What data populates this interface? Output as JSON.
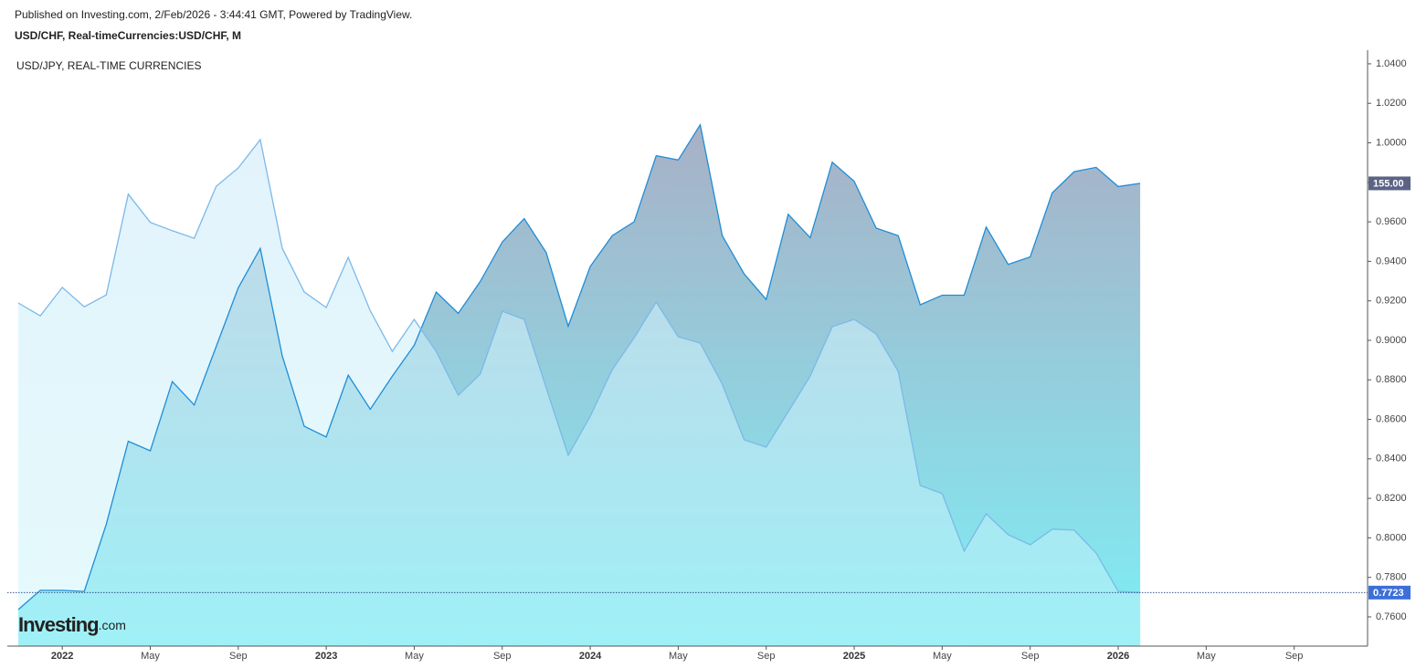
{
  "chart_data": {
    "type": "area",
    "header": "Published on Investing.com, 2/Feb/2026 - 3:44:41 GMT, Powered by TradingView.",
    "title": "USD/CHF, Real-timeCurrencies:USD/CHF, M",
    "overlay_legend": "USD/JPY, REAL-TIME CURRENCIES",
    "watermark": {
      "brand": "Investing",
      "suffix": ".com"
    },
    "categories": [
      null,
      null,
      "2022",
      null,
      null,
      null,
      "May",
      null,
      null,
      null,
      "Sep",
      null,
      null,
      null,
      "2023",
      null,
      null,
      null,
      "May",
      null,
      null,
      null,
      "Sep",
      null,
      null,
      null,
      "2024",
      null,
      null,
      null,
      "May",
      null,
      null,
      null,
      "Sep",
      null,
      null,
      null,
      "2025",
      null,
      null,
      null,
      "May",
      null,
      null,
      null,
      "Sep",
      null,
      null,
      null,
      "2026",
      null,
      null,
      null,
      "May",
      null,
      null,
      null,
      "Sep",
      null,
      null,
      null
    ],
    "ylim": [
      0.7452,
      1.0469
    ],
    "yticks": [
      {
        "value": 0.76,
        "label": "0.7600"
      },
      {
        "value": 0.78,
        "label": "0.7800"
      },
      {
        "value": 0.8,
        "label": "0.8000"
      },
      {
        "value": 0.82,
        "label": "0.8200"
      },
      {
        "value": 0.84,
        "label": "0.8400"
      },
      {
        "value": 0.86,
        "label": "0.8600"
      },
      {
        "value": 0.88,
        "label": "0.8800"
      },
      {
        "value": 0.9,
        "label": "0.9000"
      },
      {
        "value": 0.92,
        "label": "0.9200"
      },
      {
        "value": 0.94,
        "label": "0.9400"
      },
      {
        "value": 0.96,
        "label": "0.9600"
      },
      {
        "value": 0.98,
        "label": "0.9800"
      },
      {
        "value": 1.0,
        "label": "1.0000"
      },
      {
        "value": 1.02,
        "label": "1.0200"
      },
      {
        "value": 1.04,
        "label": "1.0400"
      }
    ],
    "y2lim": [
      111.57,
      167.5
    ],
    "series": [
      {
        "color": "#7cb9e8",
        "label_color": "#3d6fd8",
        "values": [
          0.9189,
          0.9124,
          0.9268,
          0.917,
          0.923,
          0.974,
          0.9597,
          0.9555,
          0.9517,
          0.978,
          0.9873,
          1.0016,
          0.9466,
          0.9245,
          0.9166,
          0.942,
          0.915,
          0.8944,
          0.9106,
          0.8944,
          0.8722,
          0.8829,
          0.9147,
          0.9106,
          0.8759,
          0.8418,
          0.8616,
          0.8852,
          0.9013,
          0.9194,
          0.9018,
          0.8986,
          0.8778,
          0.8496,
          0.8459,
          0.8639,
          0.8819,
          0.9069,
          0.9106,
          0.9032,
          0.8843,
          0.8265,
          0.8224,
          0.7933,
          0.8122,
          0.8016,
          0.7965,
          0.8044,
          0.8039,
          0.7923,
          0.7729,
          0.7723,
          null,
          null,
          null,
          null,
          null,
          null,
          null,
          null,
          null,
          null
        ],
        "value_labels": [
          null,
          null,
          null,
          null,
          null,
          null,
          null,
          null,
          null,
          null,
          null,
          null,
          null,
          null,
          null,
          null,
          null,
          null,
          null,
          null,
          null,
          null,
          null,
          null,
          null,
          null,
          null,
          null,
          null,
          null,
          null,
          null,
          null,
          null,
          null,
          null,
          null,
          null,
          null,
          null,
          null,
          null,
          null,
          null,
          null,
          null,
          null,
          null,
          null,
          null,
          null,
          "0.7723",
          null,
          null,
          null,
          null,
          null,
          null,
          null,
          null,
          null,
          null
        ]
      },
      {
        "color": "#1f8dd6",
        "axis": "y2",
        "label_color": "#5b6385",
        "values": [
          115.0,
          116.8,
          116.8,
          116.7,
          123.0,
          130.8,
          129.9,
          136.4,
          134.2,
          139.7,
          145.2,
          148.9,
          138.8,
          132.2,
          131.2,
          137.0,
          133.8,
          136.9,
          139.8,
          144.8,
          142.8,
          145.8,
          149.5,
          151.7,
          148.5,
          141.6,
          147.2,
          150.1,
          151.4,
          157.6,
          157.2,
          160.5,
          150.1,
          146.5,
          144.1,
          152.1,
          149.9,
          157.0,
          155.2,
          150.8,
          150.1,
          143.6,
          144.5,
          144.5,
          150.9,
          147.4,
          148.1,
          154.1,
          156.1,
          156.5,
          154.7,
          155.0,
          null,
          null,
          null,
          null,
          null,
          null,
          null,
          null,
          null,
          null
        ],
        "value_labels": [
          null,
          null,
          null,
          null,
          null,
          null,
          null,
          null,
          null,
          null,
          null,
          null,
          null,
          null,
          null,
          null,
          null,
          null,
          null,
          null,
          null,
          null,
          null,
          null,
          null,
          null,
          null,
          null,
          null,
          null,
          null,
          null,
          null,
          null,
          null,
          null,
          null,
          null,
          null,
          null,
          null,
          null,
          null,
          null,
          null,
          null,
          null,
          null,
          null,
          null,
          null,
          "155.00",
          null,
          null,
          null,
          null,
          null,
          null,
          null,
          null,
          null,
          null
        ]
      }
    ]
  }
}
